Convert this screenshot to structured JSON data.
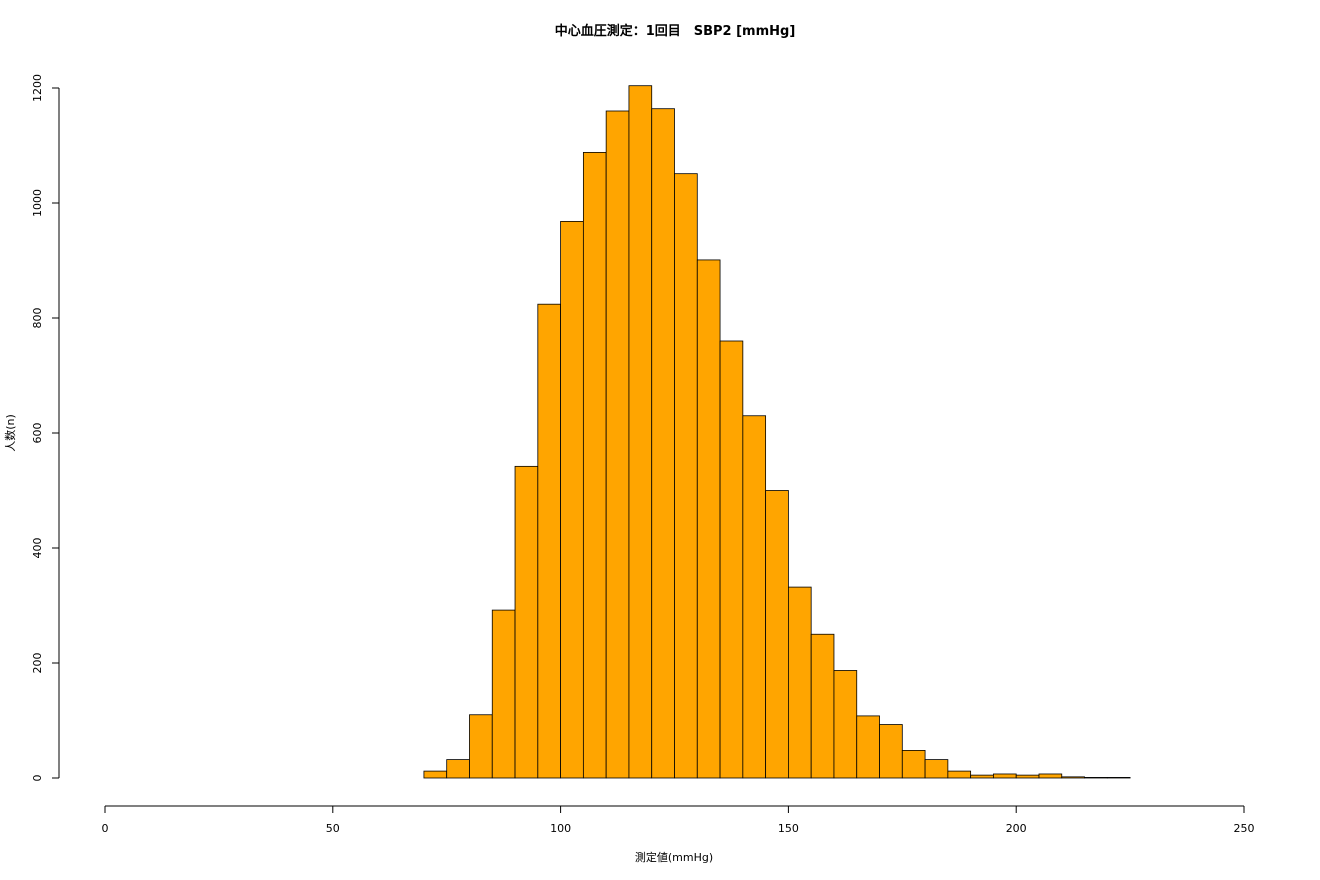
{
  "chart_data": {
    "type": "bar",
    "title": "中心血圧測定：1回目　SBP2 [mmHg]",
    "xlabel": "測定値(mmHg)",
    "ylabel": "人数(n)",
    "xlim": [
      0,
      250
    ],
    "ylim": [
      0,
      1200
    ],
    "x_ticks": [
      0,
      50,
      100,
      150,
      200,
      250
    ],
    "y_ticks": [
      0,
      200,
      400,
      600,
      800,
      1000,
      1200
    ],
    "bin_width": 5,
    "bins": [
      {
        "x0": 70,
        "x1": 75,
        "count": 12
      },
      {
        "x0": 75,
        "x1": 80,
        "count": 32
      },
      {
        "x0": 80,
        "x1": 85,
        "count": 110
      },
      {
        "x0": 85,
        "x1": 90,
        "count": 292
      },
      {
        "x0": 90,
        "x1": 95,
        "count": 542
      },
      {
        "x0": 95,
        "x1": 100,
        "count": 824
      },
      {
        "x0": 100,
        "x1": 105,
        "count": 968
      },
      {
        "x0": 105,
        "x1": 110,
        "count": 1088
      },
      {
        "x0": 110,
        "x1": 115,
        "count": 1160
      },
      {
        "x0": 115,
        "x1": 120,
        "count": 1204
      },
      {
        "x0": 120,
        "x1": 125,
        "count": 1164
      },
      {
        "x0": 125,
        "x1": 130,
        "count": 1051
      },
      {
        "x0": 130,
        "x1": 135,
        "count": 901
      },
      {
        "x0": 135,
        "x1": 140,
        "count": 760
      },
      {
        "x0": 140,
        "x1": 145,
        "count": 630
      },
      {
        "x0": 145,
        "x1": 150,
        "count": 500
      },
      {
        "x0": 150,
        "x1": 155,
        "count": 332
      },
      {
        "x0": 155,
        "x1": 160,
        "count": 250
      },
      {
        "x0": 160,
        "x1": 165,
        "count": 187
      },
      {
        "x0": 165,
        "x1": 170,
        "count": 108
      },
      {
        "x0": 170,
        "x1": 175,
        "count": 93
      },
      {
        "x0": 175,
        "x1": 180,
        "count": 48
      },
      {
        "x0": 180,
        "x1": 185,
        "count": 32
      },
      {
        "x0": 185,
        "x1": 190,
        "count": 12
      },
      {
        "x0": 190,
        "x1": 195,
        "count": 5
      },
      {
        "x0": 195,
        "x1": 200,
        "count": 7
      },
      {
        "x0": 200,
        "x1": 205,
        "count": 5
      },
      {
        "x0": 205,
        "x1": 210,
        "count": 7
      },
      {
        "x0": 210,
        "x1": 215,
        "count": 2
      },
      {
        "x0": 215,
        "x1": 220,
        "count": 1
      },
      {
        "x0": 220,
        "x1": 225,
        "count": 1
      }
    ],
    "bar_color": "#FFA500",
    "bar_border_color": "#000000",
    "grid": false,
    "legend": "none"
  }
}
